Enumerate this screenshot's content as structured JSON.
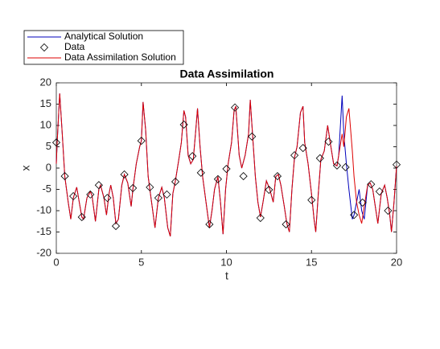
{
  "chart_data": {
    "type": "line",
    "title": "Data Assimilation",
    "xlabel": "t",
    "ylabel": "x",
    "xlim": [
      0,
      20
    ],
    "ylim": [
      -20,
      20
    ],
    "xticks": [
      0,
      5,
      10,
      15,
      20
    ],
    "yticks": [
      -20,
      -15,
      -10,
      -5,
      0,
      5,
      10,
      15,
      20
    ],
    "legend": "outside-top-left",
    "x": [
      0,
      0.05,
      0.2,
      0.35,
      0.5,
      0.7,
      0.85,
      1.0,
      1.2,
      1.35,
      1.5,
      1.6,
      1.8,
      2.0,
      2.1,
      2.3,
      2.5,
      2.6,
      2.8,
      2.95,
      3.1,
      3.2,
      3.35,
      3.5,
      3.65,
      3.85,
      4.0,
      4.2,
      4.4,
      4.5,
      4.7,
      4.9,
      5.0,
      5.1,
      5.25,
      5.4,
      5.6,
      5.8,
      6.0,
      6.2,
      6.35,
      6.55,
      6.7,
      6.85,
      7.0,
      7.2,
      7.35,
      7.5,
      7.6,
      7.75,
      7.9,
      8.05,
      8.2,
      8.3,
      8.45,
      8.6,
      8.8,
      9.0,
      9.15,
      9.3,
      9.5,
      9.65,
      9.8,
      9.95,
      10.1,
      10.3,
      10.45,
      10.55,
      10.75,
      10.9,
      11.1,
      11.3,
      11.4,
      11.55,
      11.7,
      11.85,
      12.0,
      12.15,
      12.35,
      12.55,
      12.75,
      12.9,
      13.05,
      13.2,
      13.4,
      13.55,
      13.7,
      13.85,
      14.0,
      14.15,
      14.35,
      14.5,
      14.6,
      14.8,
      15.0,
      15.15,
      15.25,
      15.4,
      15.55,
      15.75,
      15.95,
      16.1,
      16.3,
      16.5,
      16.6,
      16.8,
      16.9,
      17.05,
      17.2,
      17.4,
      17.5,
      17.65,
      17.8,
      17.95,
      18.1,
      18.3,
      18.45,
      18.6,
      18.75,
      18.9,
      19.1,
      19.3,
      19.45,
      19.6,
      19.7,
      19.85,
      20.0
    ],
    "series": [
      {
        "name": "Analytical Solution",
        "color": "#0000bb",
        "style": "line",
        "values": [
          1,
          6,
          17.5,
          8,
          -2,
          -8,
          -12,
          -7,
          -4.5,
          -8,
          -11.5,
          -12,
          -7,
          -5.5,
          -6.5,
          -12.5,
          -5,
          -4,
          -7,
          -11,
          -6,
          -4,
          -7,
          -13,
          -12,
          -4,
          -1.5,
          -3.5,
          -9,
          -5,
          1,
          5,
          6.4,
          15.5,
          9,
          -2,
          -8,
          -14,
          -7,
          -4.5,
          -7,
          -14,
          -16,
          -6,
          -3,
          2,
          6,
          13.5,
          12,
          3,
          1,
          2,
          9,
          14,
          5,
          -2,
          -8,
          -14,
          -10,
          -5,
          -2,
          -8,
          -15.5,
          -5,
          1,
          6,
          13.5,
          14.5,
          3,
          0,
          3,
          8,
          16,
          7,
          -2,
          -8,
          -11.5,
          -8,
          -3,
          -5,
          -8,
          -2,
          -1.5,
          -4,
          -9,
          -13,
          -15,
          -5,
          2.5,
          5,
          13,
          14.5,
          6,
          1,
          -6,
          -12,
          -15,
          -6,
          2,
          4,
          10,
          6,
          1,
          0.5,
          3,
          17,
          8,
          1,
          -5,
          -12,
          -11,
          -8,
          -5,
          -10,
          -12,
          -4,
          -3.5,
          -5,
          -9,
          -13,
          -6,
          -4,
          -7,
          -11,
          -15,
          -8,
          0.5
        ]
      },
      {
        "name": "Data",
        "color": "#000000",
        "style": "marker",
        "x": [
          0,
          0.5,
          1,
          1.5,
          2,
          2.5,
          3,
          3.5,
          4,
          4.5,
          5,
          5.5,
          6,
          6.5,
          7,
          7.5,
          8,
          8.5,
          9,
          9.5,
          10,
          10.5,
          11,
          11.5,
          12,
          12.5,
          13,
          13.5,
          14,
          14.5,
          15,
          15.5,
          16,
          16.5,
          17,
          17.5,
          18,
          18.5,
          19,
          19.5,
          20
        ],
        "values": [
          6.0,
          -1.9,
          -6.6,
          -11.5,
          -6.2,
          -4.0,
          -7.0,
          -13.6,
          -1.5,
          -4.7,
          6.4,
          -4.5,
          -7.0,
          -6.2,
          -3.2,
          10.2,
          2.8,
          -1.1,
          -13.2,
          -2.6,
          -0.2,
          14.2,
          -1.9,
          7.4,
          -11.7,
          -5.1,
          -1.9,
          -13.2,
          3.0,
          4.7,
          -7.5,
          2.3,
          6.2,
          0.6,
          0.2,
          -11.0,
          -8.1,
          -3.8,
          -5.5,
          -10.0,
          0.8
        ]
      },
      {
        "name": "Data Assimilation Solution",
        "color": "#dd0000",
        "style": "line",
        "values": [
          1,
          6,
          17.5,
          8,
          -2,
          -8,
          -12,
          -7,
          -4.5,
          -8,
          -11.5,
          -12,
          -7,
          -5.5,
          -6.5,
          -12.5,
          -5,
          -4,
          -7,
          -11,
          -6,
          -4,
          -7,
          -13,
          -12,
          -4,
          -1.5,
          -3.5,
          -9,
          -5,
          1,
          5,
          6.4,
          15.5,
          9,
          -2,
          -8,
          -14,
          -7,
          -4.5,
          -7,
          -14,
          -16,
          -6,
          -3,
          2,
          6,
          13.5,
          12,
          3,
          1,
          2,
          9,
          14,
          5,
          -2,
          -8,
          -14,
          -10,
          -5,
          -2,
          -8,
          -15.5,
          -5,
          1,
          6,
          13.5,
          14.5,
          3,
          0,
          3,
          8,
          16,
          7,
          -2,
          -8,
          -11.5,
          -8,
          -3,
          -5,
          -8,
          -2,
          -1.5,
          -4,
          -9,
          -13,
          -15,
          -5,
          2.5,
          5,
          13,
          14.5,
          6,
          1,
          -6,
          -12,
          -15,
          -6,
          2,
          4,
          10,
          6,
          1,
          0.5,
          3,
          8,
          5,
          12,
          14,
          4,
          -2,
          -8,
          -11,
          -13,
          -9,
          -4,
          -3.5,
          -5,
          -9,
          -13,
          -6,
          -4,
          -7,
          -11,
          -15,
          -8,
          0.5
        ]
      }
    ]
  }
}
